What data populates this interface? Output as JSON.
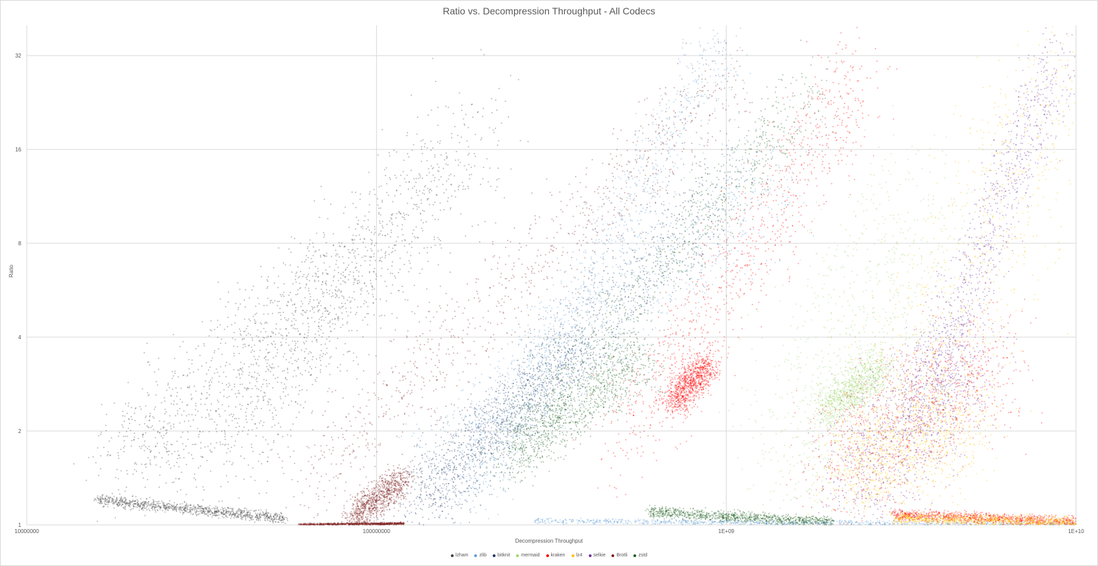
{
  "chart_data": {
    "type": "scatter",
    "title": "Ratio vs. Decompression Throughput - All Codecs",
    "xlabel": "Decompression Throughput",
    "ylabel": "Ratio",
    "x_scale": "log",
    "y_scale": "log",
    "xlim": [
      10000000,
      10000000000
    ],
    "ylim": [
      1,
      40
    ],
    "x_ticks": [
      {
        "value": 10000000,
        "label": "10000000"
      },
      {
        "value": 100000000,
        "label": "100000000"
      },
      {
        "value": 1000000000,
        "label": "1E+09"
      },
      {
        "value": 10000000000,
        "label": "1E+10"
      }
    ],
    "y_ticks": [
      {
        "value": 1,
        "label": "1"
      },
      {
        "value": 2,
        "label": "2"
      },
      {
        "value": 4,
        "label": "4"
      },
      {
        "value": 8,
        "label": "8"
      },
      {
        "value": 16,
        "label": "16"
      },
      {
        "value": 32,
        "label": "32"
      }
    ],
    "grid": true,
    "legend_position": "bottom",
    "series": [
      {
        "name": "lzham",
        "color": "#404040",
        "bands": [
          {
            "x": [
              16000000,
              55000000
            ],
            "y": [
              1.2,
              1.05
            ],
            "spread": 0.02
          },
          {
            "x": [
              18000000,
              100000000
            ],
            "y": [
              1.5,
              8.5
            ],
            "spread": 0.22
          },
          {
            "x": [
              35000000,
              200000000
            ],
            "y": [
              1.6,
              20
            ],
            "spread": 0.25
          }
        ]
      },
      {
        "name": "zlib",
        "color": "#5b9bd5",
        "bands": [
          {
            "x": [
              180000000,
              1000000000
            ],
            "y": [
              1.3,
              36
            ],
            "spread": 0.15
          },
          {
            "x": [
              150000000,
              1500000000
            ],
            "y": [
              1.6,
              14
            ],
            "spread": 0.22
          },
          {
            "x": [
              280000000,
              10000000000
            ],
            "y": [
              1.03,
              1.0
            ],
            "spread": 0.01
          }
        ]
      },
      {
        "name": "bitknit",
        "color": "#203864",
        "bands": [
          {
            "x": [
              125000000,
              1000000000
            ],
            "y": [
              1.05,
              12
            ],
            "spread": 0.18
          },
          {
            "x": [
              130000000,
              400000000
            ],
            "y": [
              1.2,
              3.8
            ],
            "spread": 0.14
          }
        ]
      },
      {
        "name": "mermaid",
        "color": "#9ed56b",
        "bands": [
          {
            "x": [
              1500000000,
              3500000000
            ],
            "y": [
              1.4,
              10
            ],
            "spread": 0.4
          },
          {
            "x": [
              1900000000,
              2800000000
            ],
            "y": [
              2.3,
              3.2
            ],
            "spread": 0.08
          }
        ]
      },
      {
        "name": "kraken",
        "color": "#ff0000",
        "bands": [
          {
            "x": [
              500000000,
              2500000000
            ],
            "y": [
              1.8,
              30
            ],
            "spread": 0.2
          },
          {
            "x": [
              700000000,
              900000000
            ],
            "y": [
              2.5,
              3.3
            ],
            "spread": 0.07
          },
          {
            "x": [
              2000000000,
              6000000000
            ],
            "y": [
              1.5,
              3.5
            ],
            "spread": 0.25
          },
          {
            "x": [
              3000000000,
              10000000000
            ],
            "y": [
              1.08,
              1.02
            ],
            "spread": 0.02
          }
        ]
      },
      {
        "name": "lz4",
        "color": "#ffc000",
        "bands": [
          {
            "x": [
              2500000000,
              10000000000
            ],
            "y": [
              1.3,
              30
            ],
            "spread": 0.35
          },
          {
            "x": [
              2200000000,
              5000000000
            ],
            "y": [
              1.5,
              2.2
            ],
            "spread": 0.2
          },
          {
            "x": [
              3000000000,
              10000000000
            ],
            "y": [
              1.05,
              1.02
            ],
            "spread": 0.02
          }
        ]
      },
      {
        "name": "selkie",
        "color": "#7030a0",
        "bands": [
          {
            "x": [
              3500000000,
              9000000000
            ],
            "y": [
              2.2,
              34
            ],
            "spread": 0.14
          },
          {
            "x": [
              2200000000,
              5000000000
            ],
            "y": [
              1.3,
              3.5
            ],
            "spread": 0.25
          }
        ]
      },
      {
        "name": "Brotli",
        "color": "#7f1f1f",
        "bands": [
          {
            "x": [
              65000000,
              1000000000
            ],
            "y": [
              1.4,
              26
            ],
            "spread": 0.18
          },
          {
            "x": [
              85000000,
              120000000
            ],
            "y": [
              1.05,
              1.4
            ],
            "spread": 0.06
          },
          {
            "x": [
              60000000,
              120000000
            ],
            "y": [
              1.0,
              1.01
            ],
            "spread": 0.005
          }
        ]
      },
      {
        "name": "zstd",
        "color": "#1e5e20",
        "bands": [
          {
            "x": [
              220000000,
              1800000000
            ],
            "y": [
              1.6,
              26
            ],
            "spread": 0.15
          },
          {
            "x": [
              250000000,
              600000000
            ],
            "y": [
              1.7,
              3.5
            ],
            "spread": 0.12
          },
          {
            "x": [
              600000000,
              2000000000
            ],
            "y": [
              1.1,
              1.02
            ],
            "spread": 0.02
          }
        ]
      }
    ]
  }
}
